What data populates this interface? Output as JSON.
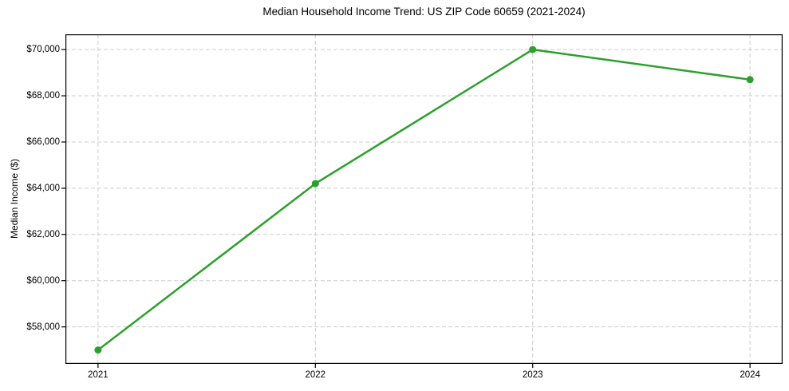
{
  "chart_data": {
    "type": "line",
    "title": "Median Household Income Trend: US ZIP Code 60659 (2021-2024)",
    "xlabel": "",
    "ylabel": "Median Income ($)",
    "x": [
      2021,
      2022,
      2023,
      2024
    ],
    "values": [
      57000,
      64200,
      70000,
      68700
    ],
    "x_tick_labels": [
      "2021",
      "2022",
      "2023",
      "2024"
    ],
    "y_ticks": [
      58000,
      60000,
      62000,
      64000,
      66000,
      68000,
      70000
    ],
    "y_tick_labels": [
      "$58,000",
      "$60,000",
      "$62,000",
      "$64,000",
      "$66,000",
      "$68,000",
      "$70,000"
    ],
    "xlim": [
      2020.85,
      2024.15
    ],
    "ylim": [
      56400,
      70660
    ],
    "grid": true,
    "grid_style": "dashed",
    "grid_color": "#cccccc",
    "line_color": "#2ca02c",
    "marker": "circle",
    "marker_color": "#2ca02c",
    "spine_color": "#000000",
    "background_color": "#ffffff",
    "legend": false
  }
}
